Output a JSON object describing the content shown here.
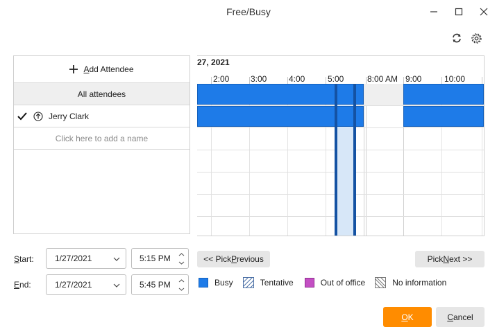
{
  "window": {
    "title": "Free/Busy"
  },
  "icons": {
    "minimize": "minimize-icon",
    "maximize": "maximize-icon",
    "close": "close-icon",
    "refresh": "refresh-icon",
    "settings": "gear-icon"
  },
  "attendees": {
    "add_label_prefix": "A",
    "add_label_rest": "dd Attendee",
    "all_label": "All attendees",
    "rows": [
      {
        "name": "Jerry Clark",
        "checked": true,
        "role": "organizer"
      }
    ],
    "click_placeholder": "Click here to add a name"
  },
  "timeline": {
    "date_label": "27, 2021",
    "times": [
      "2:00",
      "3:00",
      "4:00",
      "5:00",
      "8:00 AM",
      "9:00",
      "10:00"
    ]
  },
  "start": {
    "label_prefix": "S",
    "label_rest": "tart:",
    "date": "1/27/2021",
    "time": "5:15 PM"
  },
  "end": {
    "label_prefix": "E",
    "label_rest": "nd:",
    "date": "1/27/2021",
    "time": "5:45 PM"
  },
  "buttons": {
    "pick_previous_a": "<< Pick ",
    "pick_previous_u": "P",
    "pick_previous_b": "revious",
    "pick_next_a": "Pick ",
    "pick_next_u": "N",
    "pick_next_b": "ext >>",
    "ok_u": "O",
    "ok_rest": "K",
    "cancel_u": "C",
    "cancel_rest": "ancel"
  },
  "legend": {
    "busy": "Busy",
    "tentative": "Tentative",
    "out_of_office": "Out of office",
    "no_information": "No information"
  },
  "colors": {
    "busy": "#1e7be8",
    "out_of_office": "#c34fc3",
    "ok_button": "#ff8c00",
    "selection": "#d7e7f8",
    "selection_bar": "#1452a3"
  }
}
